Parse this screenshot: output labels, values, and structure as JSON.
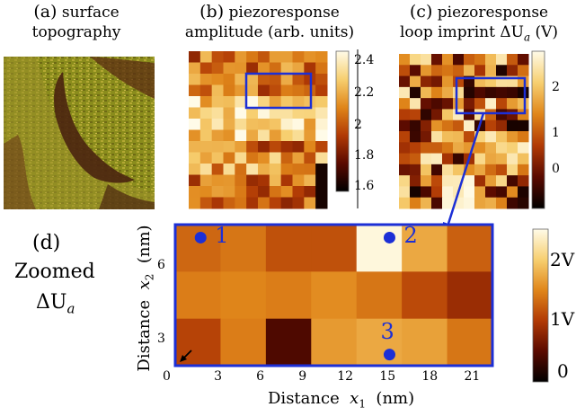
{
  "panels": {
    "a": {
      "letter": "(a)",
      "line1": "surface",
      "line2": "topography"
    },
    "b": {
      "letter": "(b)",
      "line1": "piezoresponse",
      "line2": "amplitude (arb. units)",
      "ticks": [
        "2.4",
        "2.2",
        "2",
        "1.8",
        "1.6"
      ]
    },
    "c": {
      "letter": "(c)",
      "line1": "piezoresponse",
      "line2_pre": "loop imprint",
      "line2_sym": "ΔU",
      "line2_sub": "a",
      "line2_unit": "(V)",
      "ticks": [
        "2",
        "1",
        "0"
      ]
    },
    "d": {
      "letter": "(d)",
      "line1": "Zoomed",
      "sym": "ΔU",
      "sub": "a",
      "ticks": [
        "2V",
        "1V",
        "0"
      ]
    }
  },
  "chart_data": {
    "type": "heatmap",
    "title": "",
    "xlabel": "Distance  x1  (nm)",
    "ylabel": "Distance  x2  (nm)",
    "xlabel_parts": {
      "pre": "Distance",
      "var": "x",
      "sub": "1",
      "unit": "(nm)"
    },
    "ylabel_parts": {
      "pre": "Distance",
      "var": "x",
      "sub": "2",
      "unit": "(nm)"
    },
    "x_ticks": [
      "0",
      "3",
      "6",
      "9",
      "12",
      "15",
      "18",
      "21"
    ],
    "y_ticks": [
      "3",
      "6"
    ],
    "xlim": [
      0,
      22.5
    ],
    "ylim": [
      0,
      7.6
    ],
    "grid": false,
    "colorbar": {
      "min": 0,
      "max": 2.6,
      "ticks": [
        "2V",
        "1V",
        "0"
      ]
    },
    "cells_dUa_V": [
      [
        1.35,
        1.45,
        1.2,
        1.2,
        2.55,
        1.8,
        1.3
      ],
      [
        1.5,
        1.55,
        1.5,
        1.6,
        1.45,
        1.15,
        0.9
      ],
      [
        1.1,
        1.5,
        0.45,
        1.7,
        1.8,
        1.75,
        1.45
      ]
    ],
    "points": [
      {
        "label": "1",
        "x": 1.8,
        "y": 6.9
      },
      {
        "label": "2",
        "x": 15.2,
        "y": 6.9
      },
      {
        "label": "3",
        "x": 15.2,
        "y": 0.6
      }
    ]
  }
}
